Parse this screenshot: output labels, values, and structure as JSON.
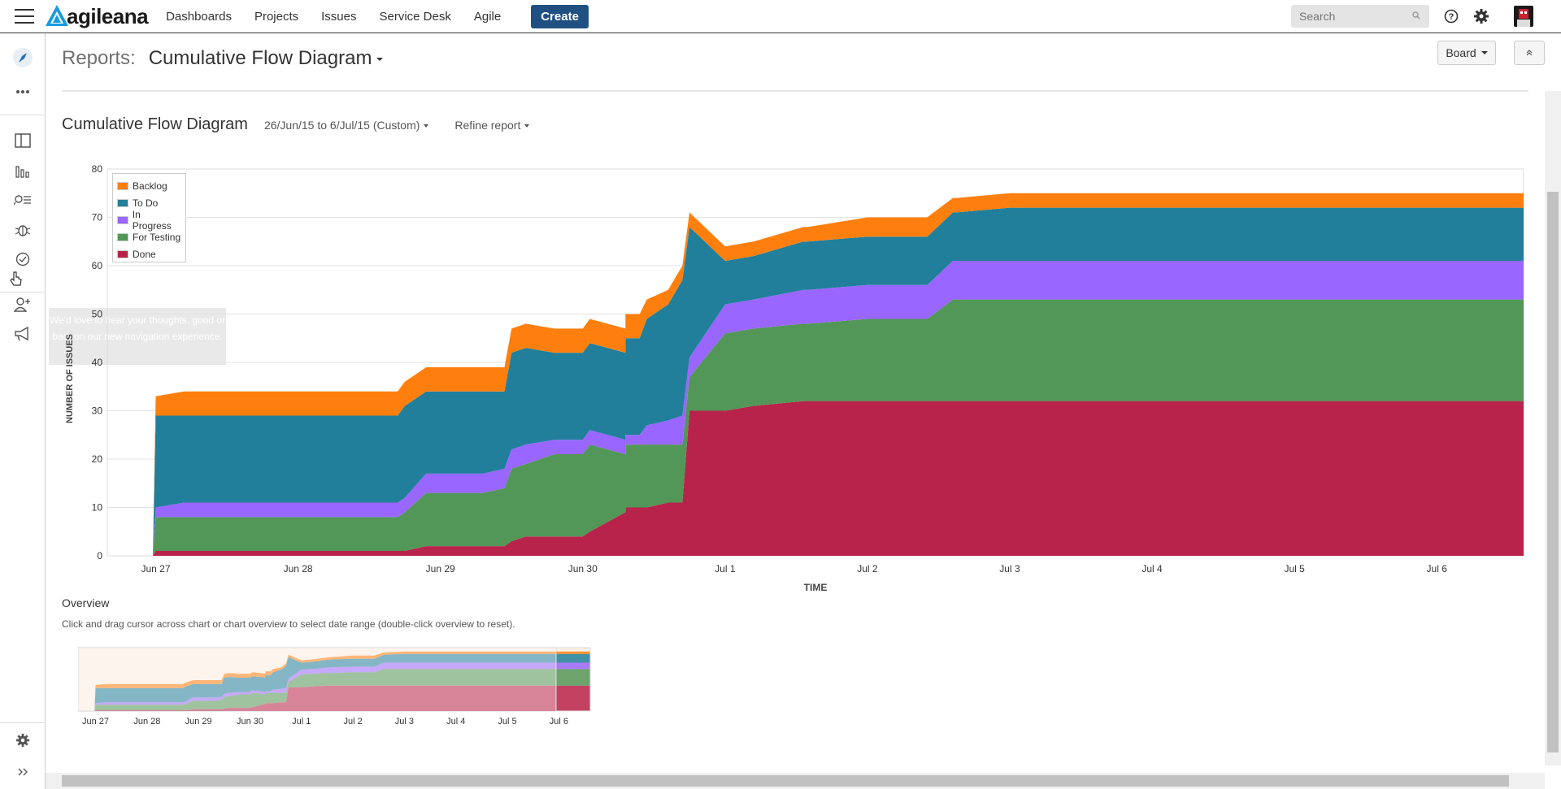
{
  "app": {
    "logo_text": "agileana",
    "nav": [
      "Dashboards",
      "Projects",
      "Issues",
      "Service Desk",
      "Agile"
    ],
    "create_label": "Create",
    "search_placeholder": "Search"
  },
  "sidebar": {
    "tooltip": "We'd love to hear your thoughts, good or bad, on our new navigation experience."
  },
  "header": {
    "reports_label": "Reports:",
    "report_title": "Cumulative Flow Diagram",
    "board_label": "Board"
  },
  "report": {
    "title": "Cumulative Flow Diagram",
    "date_range": "26/Jun/15 to 6/Jul/15 (Custom)",
    "refine_label": "Refine report",
    "overview_label": "Overview",
    "overview_help": "Click and drag cursor across chart or chart overview to select date range (double-click overview to reset)."
  },
  "colors": {
    "Backlog": "#ff7f0e",
    "To Do": "#217f9b",
    "In Progress": "#9966ff",
    "For Testing": "#529757",
    "Done": "#b8234b"
  },
  "chart_data": {
    "type": "area",
    "stacked": true,
    "xlabel": "TIME",
    "ylabel": "NUMBER OF ISSUES",
    "ylim": [
      0,
      80
    ],
    "yticks": [
      0,
      10,
      20,
      30,
      40,
      50,
      60,
      70,
      80
    ],
    "xlim": [
      26.66,
      36.61
    ],
    "xticks": [
      {
        "value": 27,
        "label": "Jun 27"
      },
      {
        "value": 28,
        "label": "Jun 28"
      },
      {
        "value": 29,
        "label": "Jun 29"
      },
      {
        "value": 30,
        "label": "Jun 30"
      },
      {
        "value": 31,
        "label": "Jul 1"
      },
      {
        "value": 32,
        "label": "Jul 2"
      },
      {
        "value": 33,
        "label": "Jul 3"
      },
      {
        "value": 34,
        "label": "Jul 4"
      },
      {
        "value": 35,
        "label": "Jul 5"
      },
      {
        "value": 36,
        "label": "Jul 6"
      }
    ],
    "legend_position": "top-left",
    "grid": true,
    "x": [
      26.66,
      26.96,
      26.98,
      27.0,
      27.2,
      27.5,
      28.0,
      28.5,
      28.7,
      28.75,
      28.9,
      29.3,
      29.45,
      29.5,
      29.6,
      29.8,
      30.0,
      30.05,
      30.3,
      30.3,
      30.4,
      30.45,
      30.6,
      30.7,
      30.75,
      31.0,
      31.2,
      31.55,
      31.58,
      32.0,
      32.4,
      32.42,
      32.6,
      32.62,
      33.0,
      34.0,
      35.0,
      36.0,
      36.61
    ],
    "series": [
      {
        "name": "Done",
        "values": [
          0,
          0,
          0,
          1,
          1,
          1,
          1,
          1,
          1,
          1,
          2,
          2,
          2,
          3,
          4,
          4,
          4,
          5,
          9,
          10,
          10,
          10,
          11,
          11,
          30,
          30,
          31,
          32,
          32,
          32,
          32,
          32,
          32,
          32,
          32,
          32,
          32,
          32,
          32
        ]
      },
      {
        "name": "For Testing",
        "values": [
          0,
          0,
          0,
          7,
          7,
          7,
          7,
          7,
          7,
          8,
          11,
          11,
          12,
          15,
          15,
          17,
          17,
          18,
          12,
          13,
          13,
          13,
          12,
          12,
          7,
          16,
          16,
          16,
          16,
          17,
          17,
          17,
          21,
          21,
          21,
          21,
          21,
          21,
          21
        ]
      },
      {
        "name": "In Progress",
        "values": [
          0,
          0,
          0,
          2,
          3,
          3,
          3,
          3,
          3,
          3,
          4,
          4,
          4,
          4,
          4,
          3,
          3,
          3,
          3,
          2,
          2,
          4,
          5,
          6,
          4,
          6,
          6,
          7,
          7,
          7,
          7,
          7,
          8,
          8,
          8,
          8,
          8,
          8,
          8
        ]
      },
      {
        "name": "To Do",
        "values": [
          0,
          0,
          0,
          19,
          18,
          18,
          18,
          18,
          18,
          19,
          17,
          17,
          16,
          20,
          20,
          18,
          18,
          18,
          18,
          20,
          20,
          22,
          24,
          28,
          27,
          9,
          9,
          10,
          10,
          10,
          10,
          10,
          10,
          10,
          11,
          11,
          11,
          11,
          11
        ]
      },
      {
        "name": "Backlog",
        "values": [
          0,
          0,
          0,
          4,
          5,
          5,
          5,
          5,
          5,
          5,
          5,
          5,
          5,
          5,
          5,
          5,
          5,
          5,
          5,
          5,
          5,
          4,
          3,
          3,
          3,
          3,
          3,
          3,
          3,
          4,
          4,
          4,
          3,
          3,
          3,
          3,
          3,
          3,
          3
        ]
      }
    ]
  },
  "overview_data": {
    "xticks": [
      "Jun 27",
      "Jun 28",
      "Jun 29",
      "Jun 30",
      "Jul 1",
      "Jul 2",
      "Jul 3",
      "Jul 4",
      "Jul 5",
      "Jul 6"
    ]
  }
}
